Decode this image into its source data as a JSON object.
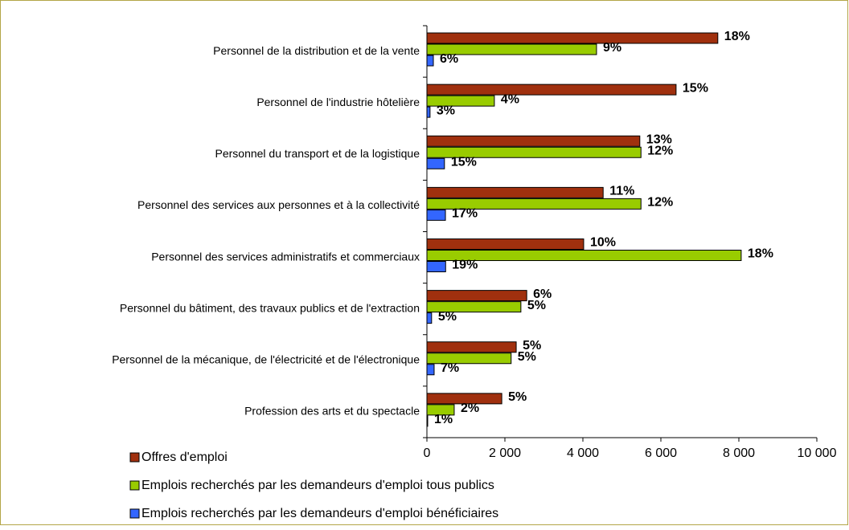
{
  "chart_data": {
    "type": "bar",
    "orientation": "horizontal",
    "categories": [
      "Personnel de la distribution et de la vente",
      "Personnel de l'industrie hôtelière",
      "Personnel du transport et de la logistique",
      "Personnel des services aux personnes et à la collectivité",
      "Personnel des services administratifs et commerciaux",
      "Personnel du bâtiment, des travaux publics et de l'extraction",
      "Personnel de la mécanique, de l'électricité et de l'électronique",
      "Profession des arts et du spectacle"
    ],
    "series": [
      {
        "name": "Offres d'emploi",
        "color": "#a0300e",
        "values": [
          7460,
          6390,
          5460,
          4520,
          4020,
          2560,
          2290,
          1920
        ],
        "value_labels": [
          "18%",
          "15%",
          "13%",
          "11%",
          "10%",
          "6%",
          "5%",
          "5%"
        ]
      },
      {
        "name": "Emplois recherchés par les demandeurs d'emploi tous publics",
        "color": "#99cc00",
        "values": [
          4350,
          1730,
          5490,
          5490,
          8060,
          2410,
          2160,
          700
        ],
        "value_labels": [
          "9%",
          "4%",
          "12%",
          "12%",
          "18%",
          "5%",
          "5%",
          "2%"
        ]
      },
      {
        "name": "Emplois recherchés par les demandeurs d'emploi bénéficiaires",
        "color": "#3366ff",
        "values": [
          165,
          80,
          450,
          475,
          480,
          120,
          185,
          20
        ],
        "value_labels": [
          "6%",
          "3%",
          "15%",
          "17%",
          "19%",
          "5%",
          "7%",
          "1%"
        ]
      }
    ],
    "xlim": [
      0,
      10000
    ],
    "xticks": [
      0,
      {
        "value": 2000,
        "label": "2 000"
      },
      {
        "value": 4000,
        "label": "4 000"
      },
      {
        "value": 6000,
        "label": "6 000"
      },
      {
        "value": 8000,
        "label": "8 000"
      },
      {
        "value": 10000,
        "label": "10 000"
      }
    ]
  }
}
